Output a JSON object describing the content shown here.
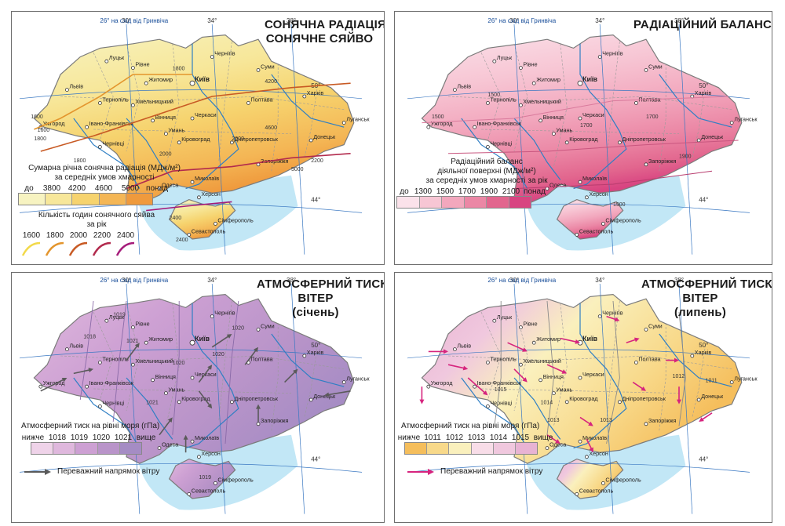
{
  "meridian_label": "26° на схід від Гринвіча",
  "colors": {
    "water": "#8fd3ee",
    "river": "#2f7fc4",
    "border": "#7b7b7b",
    "grid": "#3a78c2"
  },
  "panels": [
    {
      "id": "solar",
      "title": [
        "СОНЯЧНА РАДІАЦІЯ.",
        "СОНЯЧНЕ СЯЙВО"
      ],
      "land_color": "#f6e07a",
      "accent_color": "#f3a546",
      "legend": {
        "title": [
          "Сумарна річна сонячна радіація (МДж/м²)",
          "за середніх умов хмарності"
        ],
        "labels": [
          "до",
          "3800",
          "4200",
          "4600",
          "5000",
          "понад"
        ],
        "colors": [
          "#f7f3c1",
          "#f7e79a",
          "#f6d36e",
          "#f4b655",
          "#ef9a3d"
        ]
      },
      "legend2": {
        "title": [
          "Кількість годин сонячного сяйва",
          "за рік"
        ],
        "labels": [
          "1600",
          "1800",
          "2000",
          "2200",
          "2400"
        ],
        "colors": [
          "#f2d94a",
          "#e3952d",
          "#c85a24",
          "#b22a4d",
          "#a51c7a"
        ]
      },
      "isoline_labels": [
        "1600",
        "1600",
        "1800",
        "1800",
        "2000",
        "2000",
        "2200",
        "2400",
        "2400",
        "1800",
        "4200",
        "4600",
        "5000"
      ]
    },
    {
      "id": "radiation",
      "title": [
        "РАДІАЦІЙНИЙ БАЛАНС"
      ],
      "land_color": "#f2aac0",
      "accent_color": "#e46b98",
      "legend": {
        "title": [
          "Радіаційний баланс",
          "діяльної поверхні (МДж/м²)",
          "за середніх умов хмарності за рік"
        ],
        "labels": [
          "до",
          "1300",
          "1500",
          "1700",
          "1900",
          "2100",
          "понад"
        ],
        "colors": [
          "#fbe2ea",
          "#f7c6d4",
          "#f2a7bd",
          "#eb87a5",
          "#e2668e",
          "#d84481"
        ]
      },
      "isoline_labels": [
        "1500",
        "1500",
        "1700",
        "1700",
        "1900",
        "1900"
      ]
    },
    {
      "id": "pressure-jan",
      "title": [
        "АТМОСФЕРНИЙ ТИСК.",
        "ВІТЕР",
        "(січень)"
      ],
      "land_color": "#c9a3d4",
      "accent_color": "#a37ec2",
      "legend": {
        "title": [
          "Атмосферний тиск на рівні моря (гПа)"
        ],
        "labels": [
          "нижче",
          "1018",
          "1019",
          "1020",
          "1021",
          "вище"
        ],
        "colors": [
          "#efd3e9",
          "#dfb8dd",
          "#cda0d3",
          "#b994c9",
          "#a58cc4"
        ]
      },
      "wind_label": "Переважний напрямок вітру",
      "wind_color": "#5a5a5a",
      "isoline_labels": [
        "1018",
        "1019",
        "1020",
        "1020",
        "1021",
        "1021",
        "1020",
        "1019"
      ]
    },
    {
      "id": "pressure-jul",
      "title": [
        "АТМОСФЕРНИЙ ТИСК.",
        "ВІТЕР",
        "(липень)"
      ],
      "land_color": "#f8efc8",
      "accent_color": "#f2b95a",
      "legend": {
        "title": [
          "Атмосферний тиск на рівні моря (гПа)"
        ],
        "labels": [
          "нижче",
          "1011",
          "1012",
          "1013",
          "1014",
          "1015",
          "вище"
        ],
        "colors": [
          "#f5be5c",
          "#f8d98a",
          "#faf0bd",
          "#f8dde8",
          "#f0c8de",
          "#e8b3d3"
        ]
      },
      "wind_label": "Переважний напрямок вітру",
      "wind_color": "#d6247e",
      "isoline_labels": [
        "1015",
        "1014",
        "1013",
        "1012",
        "1011",
        "1013"
      ]
    }
  ],
  "cities": [
    "Луцьк",
    "Рівне",
    "Житомир",
    "Київ",
    "Чернігів",
    "Суми",
    "Харків",
    "Полтава",
    "Львів",
    "Тернопіль",
    "Хмельницький",
    "Вінниця",
    "Черкаси",
    "Ужгород",
    "Івано-Франківськ",
    "Чернівці",
    "Кіровоград",
    "Дніпропетровськ",
    "Луганськ",
    "Донецьк",
    "Запоріжжя",
    "Миколаїв",
    "Одеса",
    "Херсон",
    "Сімферополь",
    "Севастополь",
    "Умань"
  ],
  "meridians": [
    "30°",
    "34°",
    "38°"
  ],
  "parallels": [
    "50°",
    "44°"
  ]
}
